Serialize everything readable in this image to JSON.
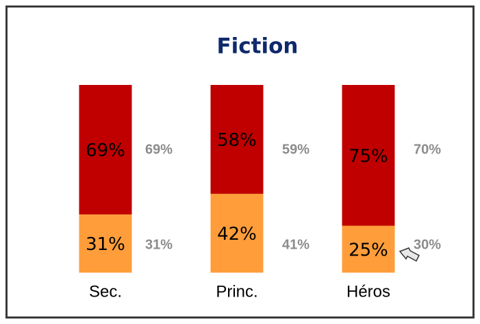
{
  "chart_data": {
    "type": "stacked_bar",
    "title": "Fiction",
    "categories": [
      "Sec.",
      "Princ.",
      "Héros"
    ],
    "series": [
      {
        "color": "#ff9d3a",
        "values": [
          31,
          42,
          25
        ],
        "value_labels": [
          "31%",
          "42%",
          "25%"
        ]
      },
      {
        "color": "#c00000",
        "values": [
          69,
          58,
          75
        ],
        "value_labels": [
          "69%",
          "58%",
          "75%"
        ]
      }
    ],
    "reference": [
      {
        "values": [
          31,
          41,
          30
        ],
        "value_labels": [
          "31%",
          "41%",
          "30%"
        ]
      },
      {
        "values": [
          69,
          59,
          70
        ],
        "value_labels": [
          "69%",
          "59%",
          "70%"
        ]
      }
    ],
    "ylim": [
      0,
      100
    ]
  }
}
